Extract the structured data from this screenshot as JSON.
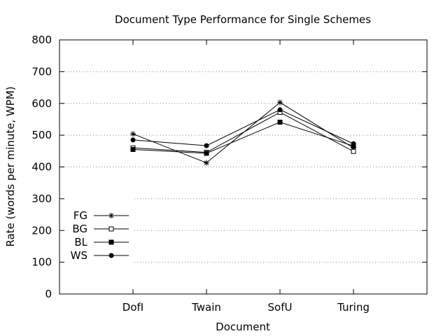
{
  "chart_data": {
    "type": "line",
    "title": "Document Type Performance for Single Schemes",
    "xlabel": "Document",
    "ylabel": "Rate (words per minute, WPM)",
    "categories": [
      "DofI",
      "Twain",
      "SofU",
      "Turing"
    ],
    "ylim": [
      0,
      800
    ],
    "yticks": [
      0,
      100,
      200,
      300,
      400,
      500,
      600,
      700,
      800
    ],
    "grid": true,
    "legend_position": "bottom-left",
    "series": [
      {
        "name": "FG",
        "marker": "asterisk",
        "values": [
          504,
          413,
          603,
          460
        ]
      },
      {
        "name": "BG",
        "marker": "open-square",
        "values": [
          460,
          446,
          572,
          449
        ]
      },
      {
        "name": "BL",
        "marker": "filled-square",
        "values": [
          455,
          443,
          541,
          466
        ]
      },
      {
        "name": "WS",
        "marker": "filled-circle",
        "values": [
          485,
          467,
          580,
          473
        ]
      }
    ]
  }
}
